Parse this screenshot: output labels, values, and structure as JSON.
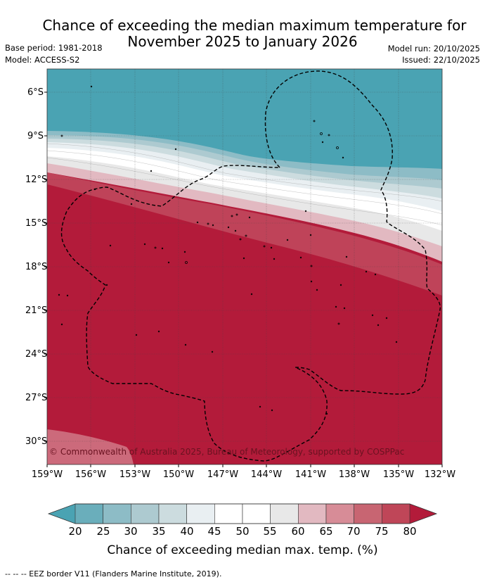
{
  "title": {
    "line1": "Chance of exceeding the median maximum temperature for",
    "line2": "November 2025 to January 2026"
  },
  "meta": {
    "base_period": "Base period: 1981-2018",
    "model": "Model: ACCESS-S2",
    "model_run": "Model run: 20/10/2025",
    "issued": "Issued: 22/10/2025"
  },
  "map": {
    "latitude_ticks": [
      "6°S",
      "9°S",
      "12°S",
      "15°S",
      "18°S",
      "21°S",
      "24°S",
      "27°S",
      "30°S"
    ],
    "longitude_ticks": [
      "159°W",
      "156°W",
      "153°W",
      "150°W",
      "147°W",
      "144°W",
      "141°W",
      "138°W",
      "135°W",
      "132°W"
    ],
    "extent": {
      "lon": [
        -159,
        -132
      ],
      "lat": [
        -31.5,
        -4.5
      ]
    },
    "copyright": "© Commonwealth of Australia 2025, Bureau of Meteorology, supported by COSPPac",
    "colors": {
      "high": "#b31b3a",
      "low": "#4aa3b3",
      "neutral": "#ffffff"
    }
  },
  "colorbar": {
    "label": "Chance of exceeding median max. temp. (%)",
    "ticks": [
      "20",
      "25",
      "30",
      "35",
      "40",
      "45",
      "50",
      "55",
      "60",
      "65",
      "70",
      "75",
      "80"
    ],
    "bins": [
      "#4aa3b3",
      "#6aaebb",
      "#8dbcc6",
      "#adcad0",
      "#ccdcdf",
      "#e9eff2",
      "#ffffff",
      "#ffffff",
      "#e8e8e8",
      "#e2b9c1",
      "#d78c97",
      "#c86572",
      "#bf4658",
      "#b31b3a"
    ]
  },
  "footer": "--  --  -- EEZ border V11 (Flanders Marine Institute, 2019)."
}
